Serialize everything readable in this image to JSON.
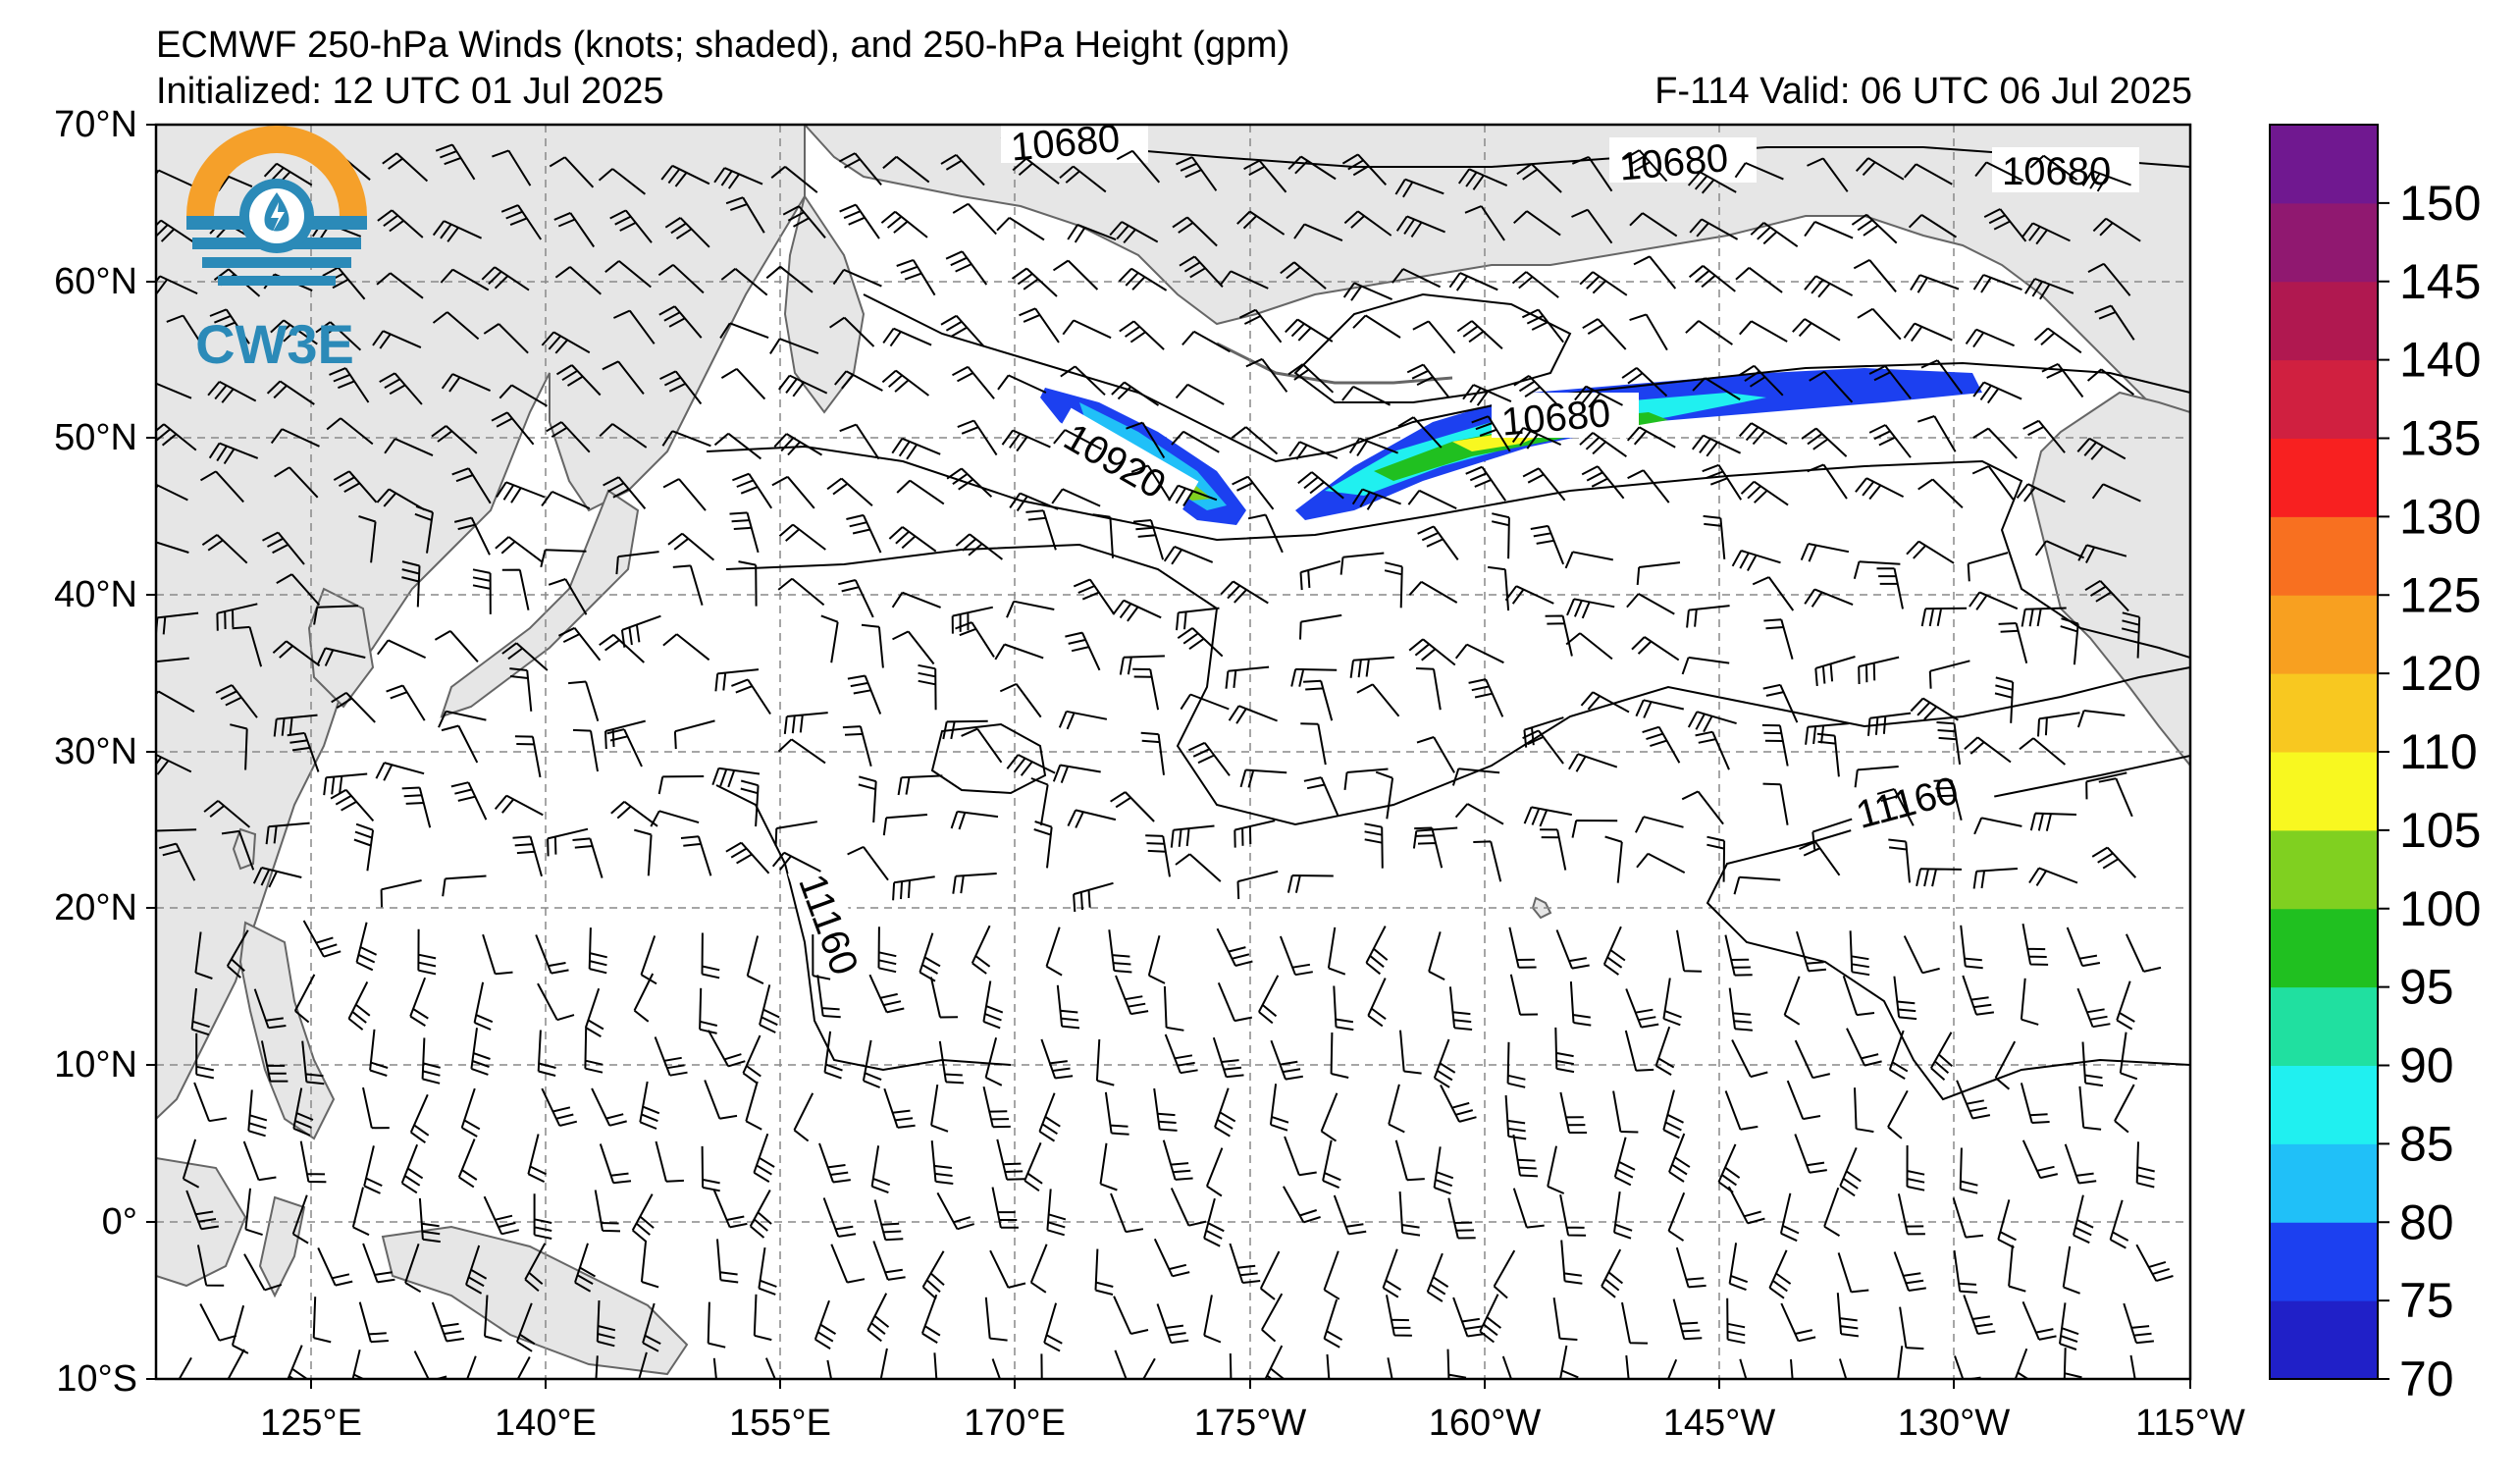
{
  "title": {
    "line1": "ECMWF 250-hPa Winds (knots; shaded), and 250-hPa Height (gpm)",
    "line2": "Initialized: 12 UTC 01 Jul 2025",
    "valid": "F-114  Valid: 06 UTC 06 Jul 2025"
  },
  "logo": {
    "text": "CW3E",
    "icon": "cw3e-logo-icon"
  },
  "map": {
    "projection": "Plate Carree, Pacific-centered",
    "lon_range": [
      "112°E",
      "115°W"
    ],
    "lat_range": [
      "10°S",
      "70°N"
    ],
    "land_color": "#e6e6e6",
    "coast_color": "#666666",
    "gridlines": true,
    "lon_ticks": [
      "125°E",
      "140°E",
      "155°E",
      "170°E",
      "175°W",
      "160°W",
      "145°W",
      "130°W",
      "115°W"
    ],
    "lat_ticks": [
      "70°N",
      "60°N",
      "50°N",
      "40°N",
      "30°N",
      "20°N",
      "10°N",
      "0°",
      "10°S"
    ]
  },
  "contour_labels": [
    "10680",
    "10680",
    "10680",
    "10680",
    "10920",
    "11160",
    "11160"
  ],
  "colorbar": {
    "labels": [
      "70",
      "75",
      "80",
      "85",
      "90",
      "95",
      "100",
      "105",
      "110",
      "120",
      "125",
      "130",
      "135",
      "140",
      "145",
      "150"
    ],
    "colors": [
      "#2020c8",
      "#1c40f0",
      "#20c0f8",
      "#20f0f0",
      "#20e0a0",
      "#20c020",
      "#80d020",
      "#f8f820",
      "#f8c820",
      "#f8a020",
      "#f87020",
      "#f82020",
      "#d02040",
      "#b01850",
      "#901870",
      "#701890"
    ],
    "units": "knots"
  }
}
